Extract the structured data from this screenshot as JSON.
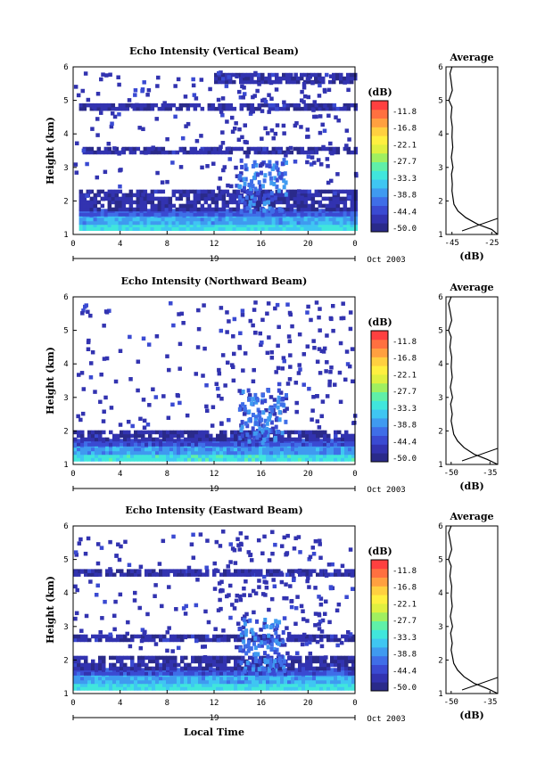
{
  "chart_data": [
    {
      "type": "heatmap",
      "title": "Echo Intensity (Vertical Beam)",
      "ylabel": "Height (km)",
      "ylim": [
        1,
        6
      ],
      "yticks": [
        "1",
        "2",
        "3",
        "4",
        "5",
        "6"
      ],
      "xlim": [
        0,
        24
      ],
      "xticks": [
        "0",
        "4",
        "8",
        "12",
        "16",
        "20",
        "0"
      ],
      "date_day": "19",
      "date_label": "Oct 2003",
      "colorbar_unit": "(dB)",
      "colorbar_ticks": [
        "-11.8",
        "-16.8",
        "-22.1",
        "-27.7",
        "-33.3",
        "-38.8",
        "-44.4",
        "-50.0"
      ],
      "bands": [
        {
          "h0": 1.12,
          "h1": 1.3,
          "level": 0.4,
          "t0": 0.5,
          "t1": 24
        },
        {
          "h0": 1.3,
          "h1": 1.55,
          "level": 0.3,
          "t0": 0.5,
          "t1": 24
        },
        {
          "h0": 1.55,
          "h1": 1.7,
          "level": 0.18,
          "t0": 0.5,
          "t1": 24
        },
        {
          "h0": 1.7,
          "h1": 2.3,
          "level": 0.05,
          "t0": 0.5,
          "t1": 24
        },
        {
          "h0": 3.4,
          "h1": 3.55,
          "level": 0.05,
          "t0": 0.5,
          "t1": 24
        },
        {
          "h0": 4.7,
          "h1": 4.85,
          "level": 0.05,
          "t0": 0.5,
          "t1": 24
        },
        {
          "h0": 5.5,
          "h1": 5.8,
          "level": 0.05,
          "t0": 12,
          "t1": 24
        }
      ],
      "average": {
        "title": "Average",
        "xlabel": "(dB)",
        "xticks": [
          "-45",
          "-25"
        ],
        "xlim": [
          -48,
          -22
        ],
        "heights": [
          1.0,
          1.15,
          1.3,
          1.5,
          1.7,
          1.9,
          2.1,
          2.3,
          2.5,
          2.8,
          3.0,
          3.3,
          3.6,
          3.9,
          4.2,
          4.5,
          4.8,
          5.0,
          5.3,
          5.6,
          5.8,
          6.0
        ],
        "values": [
          -22,
          -25,
          -32,
          -38,
          -42,
          -44,
          -44.5,
          -45,
          -44.8,
          -45.2,
          -44.5,
          -45.3,
          -44.6,
          -45,
          -44.8,
          -45.5,
          -45,
          -46.5,
          -44.8,
          -45.5,
          -46,
          -45
        ]
      }
    },
    {
      "type": "heatmap",
      "title": "Echo Intensity (Northward Beam)",
      "ylabel": "Height (km)",
      "ylim": [
        1,
        6
      ],
      "yticks": [
        "1",
        "2",
        "3",
        "4",
        "5",
        "6"
      ],
      "xlim": [
        0,
        24
      ],
      "xticks": [
        "0",
        "4",
        "8",
        "12",
        "16",
        "20",
        "0"
      ],
      "date_day": "19",
      "date_label": "Oct 2003",
      "colorbar_unit": "(dB)",
      "colorbar_ticks": [
        "-11.8",
        "-16.8",
        "-22.1",
        "-27.7",
        "-33.3",
        "-38.8",
        "-44.4",
        "-50.0"
      ],
      "bands": [
        {
          "h0": 1.1,
          "h1": 1.3,
          "level": 0.42,
          "t0": 0,
          "t1": 24
        },
        {
          "h0": 1.3,
          "h1": 1.55,
          "level": 0.28,
          "t0": 0,
          "t1": 24
        },
        {
          "h0": 1.55,
          "h1": 1.7,
          "level": 0.15,
          "t0": 0,
          "t1": 24
        },
        {
          "h0": 1.7,
          "h1": 2.0,
          "level": 0.05,
          "t0": 0,
          "t1": 24
        }
      ],
      "average": {
        "title": "Average",
        "xlabel": "(dB)",
        "xticks": [
          "-50",
          "-35"
        ],
        "xlim": [
          -52,
          -32
        ],
        "heights": [
          1.0,
          1.15,
          1.3,
          1.5,
          1.7,
          1.9,
          2.1,
          2.3,
          2.5,
          2.8,
          3.0,
          3.3,
          3.6,
          3.9,
          4.2,
          4.5,
          4.8,
          5.0,
          5.3,
          5.6,
          5.8,
          6.0
        ],
        "values": [
          -32,
          -36,
          -41,
          -45,
          -47.5,
          -49,
          -49.5,
          -50,
          -49.6,
          -50.2,
          -49.5,
          -50.3,
          -49.6,
          -50,
          -49.8,
          -50.5,
          -50,
          -51,
          -49.8,
          -50.5,
          -51,
          -50
        ]
      }
    },
    {
      "type": "heatmap",
      "title": "Echo Intensity (Eastward Beam)",
      "ylabel": "Height (km)",
      "xlabel": "Local Time",
      "ylim": [
        1,
        6
      ],
      "yticks": [
        "1",
        "2",
        "3",
        "4",
        "5",
        "6"
      ],
      "xlim": [
        0,
        24
      ],
      "xticks": [
        "0",
        "4",
        "8",
        "12",
        "16",
        "20",
        "0"
      ],
      "date_day": "19",
      "date_label": "Oct 2003",
      "colorbar_unit": "(dB)",
      "colorbar_ticks": [
        "-11.8",
        "-16.8",
        "-22.1",
        "-27.7",
        "-33.3",
        "-38.8",
        "-44.4",
        "-50.0"
      ],
      "bands": [
        {
          "h0": 1.1,
          "h1": 1.3,
          "level": 0.4,
          "t0": 0,
          "t1": 24
        },
        {
          "h0": 1.3,
          "h1": 1.55,
          "level": 0.3,
          "t0": 0,
          "t1": 24
        },
        {
          "h0": 1.55,
          "h1": 1.7,
          "level": 0.15,
          "t0": 0,
          "t1": 24
        },
        {
          "h0": 1.7,
          "h1": 2.1,
          "level": 0.05,
          "t0": 0,
          "t1": 24
        },
        {
          "h0": 2.55,
          "h1": 2.75,
          "level": 0.05,
          "t0": 0,
          "t1": 24
        },
        {
          "h0": 4.5,
          "h1": 4.65,
          "level": 0.05,
          "t0": 0,
          "t1": 24
        }
      ],
      "average": {
        "title": "Average",
        "xlabel": "(dB)",
        "xticks": [
          "-50",
          "-35"
        ],
        "xlim": [
          -52,
          -32
        ],
        "heights": [
          1.0,
          1.15,
          1.3,
          1.5,
          1.7,
          1.9,
          2.1,
          2.3,
          2.5,
          2.8,
          3.0,
          3.3,
          3.6,
          3.9,
          4.2,
          4.5,
          4.8,
          5.0,
          5.3,
          5.6,
          5.8,
          6.0
        ],
        "values": [
          -32,
          -36,
          -41,
          -45,
          -47.5,
          -49,
          -49.5,
          -50,
          -49.6,
          -50.2,
          -49.5,
          -50.3,
          -49.6,
          -50,
          -49.8,
          -50.5,
          -50,
          -51,
          -49.8,
          -50.5,
          -51,
          -50
        ]
      }
    }
  ],
  "colors": {
    "colormap": [
      "#2a2a8a",
      "#3233b0",
      "#3a4ad2",
      "#3f6ee8",
      "#3f9af0",
      "#3fc6f2",
      "#40e6dc",
      "#60f0a8",
      "#a0f060",
      "#e0f040",
      "#fff040",
      "#ffd040",
      "#ffa040",
      "#ff7040",
      "#ff4040"
    ]
  }
}
